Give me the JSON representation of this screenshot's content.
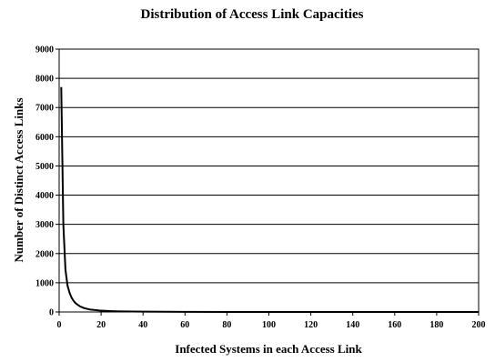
{
  "chart_data": {
    "type": "line",
    "title": "Distribution of Access Link Capacities",
    "xlabel": "Infected Systems in each Access Link",
    "ylabel": "Number of Distinct Access Links",
    "xlim": [
      0,
      200
    ],
    "ylim": [
      0,
      9000
    ],
    "xticks": [
      0,
      20,
      40,
      60,
      80,
      100,
      120,
      140,
      160,
      180,
      200
    ],
    "yticks": [
      0,
      1000,
      2000,
      3000,
      4000,
      5000,
      6000,
      7000,
      8000,
      9000
    ],
    "grid": "horizontal",
    "legend": "none",
    "series": [
      {
        "color": "#000000",
        "x": [
          1,
          2,
          3,
          4,
          5,
          6,
          7,
          8,
          10,
          12,
          15,
          20,
          25,
          30,
          40,
          50,
          60,
          80,
          100,
          120,
          140,
          160,
          180,
          200
        ],
        "y": [
          7700,
          3000,
          1450,
          900,
          650,
          480,
          370,
          290,
          190,
          130,
          80,
          45,
          28,
          18,
          10,
          6,
          4,
          2,
          1,
          1,
          0,
          0,
          0,
          0
        ]
      }
    ]
  }
}
